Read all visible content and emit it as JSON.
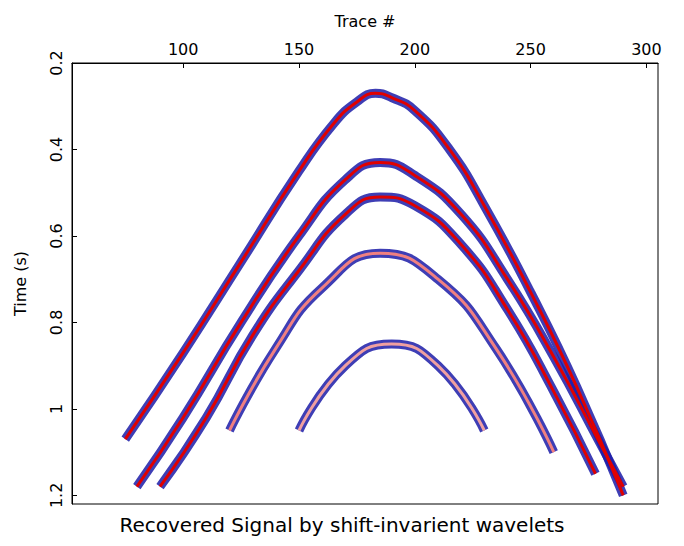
{
  "chart_data": {
    "type": "line",
    "title": "Recovered Signal by shift-invarient wavelets",
    "x_label": "Trace #",
    "y_label": "Time (s)",
    "xlim": [
      52,
      305
    ],
    "xticks": [
      100,
      150,
      200,
      250,
      300
    ],
    "ylim": [
      0.2,
      1.22
    ],
    "yticks": [
      0.2,
      0.4,
      0.6,
      0.8,
      1,
      1.2
    ],
    "grid": false,
    "line_style": "solid",
    "series": [
      {
        "color": "#e00000",
        "x": [
          75,
          100,
          125,
          150,
          165,
          175,
          183,
          190,
          200,
          215,
          230,
          250,
          270,
          290
        ],
        "values": [
          1.07,
          0.87,
          0.66,
          0.45,
          0.34,
          0.29,
          0.27,
          0.28,
          0.31,
          0.4,
          0.53,
          0.73,
          0.95,
          1.2
        ]
      },
      {
        "color": "#e00000",
        "x": [
          80,
          100,
          125,
          150,
          170,
          185,
          200,
          220,
          240,
          260,
          280,
          290
        ],
        "values": [
          1.18,
          1.02,
          0.8,
          0.6,
          0.47,
          0.43,
          0.46,
          0.55,
          0.7,
          0.88,
          1.08,
          1.18
        ]
      },
      {
        "color": "#e00000",
        "x": [
          90,
          110,
          130,
          150,
          170,
          185,
          200,
          220,
          240,
          260,
          278
        ],
        "values": [
          1.18,
          1.02,
          0.83,
          0.68,
          0.55,
          0.51,
          0.53,
          0.62,
          0.77,
          0.96,
          1.15
        ]
      },
      {
        "color": "#f08080",
        "x": [
          120,
          140,
          160,
          185,
          210,
          235,
          260
        ],
        "values": [
          1.05,
          0.86,
          0.72,
          0.64,
          0.7,
          0.86,
          1.1
        ]
      },
      {
        "color": "#f0a0a0",
        "x": [
          150,
          170,
          190,
          210,
          230
        ],
        "values": [
          1.05,
          0.9,
          0.85,
          0.9,
          1.05
        ]
      }
    ]
  }
}
